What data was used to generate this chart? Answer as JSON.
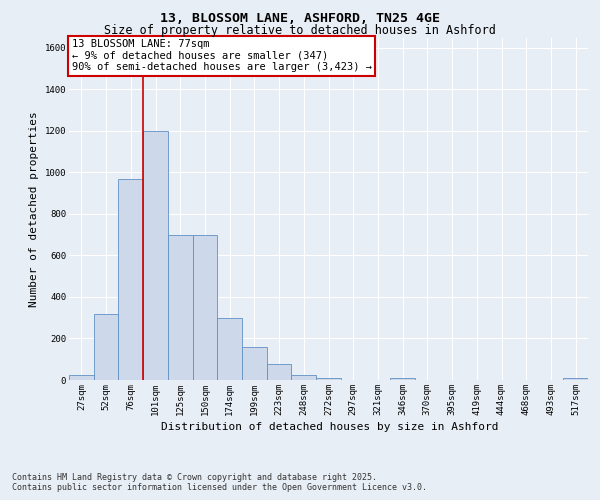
{
  "title_line1": "13, BLOSSOM LANE, ASHFORD, TN25 4GE",
  "title_line2": "Size of property relative to detached houses in Ashford",
  "xlabel": "Distribution of detached houses by size in Ashford",
  "ylabel": "Number of detached properties",
  "categories": [
    "27sqm",
    "52sqm",
    "76sqm",
    "101sqm",
    "125sqm",
    "150sqm",
    "174sqm",
    "199sqm",
    "223sqm",
    "248sqm",
    "272sqm",
    "297sqm",
    "321sqm",
    "346sqm",
    "370sqm",
    "395sqm",
    "419sqm",
    "444sqm",
    "468sqm",
    "493sqm",
    "517sqm"
  ],
  "bar_heights": [
    25,
    320,
    970,
    1200,
    700,
    700,
    300,
    160,
    75,
    25,
    10,
    0,
    0,
    10,
    0,
    0,
    0,
    0,
    0,
    0,
    10
  ],
  "bar_color": "#cdd9ea",
  "bar_edge_color": "#6090c4",
  "annotation_text": "13 BLOSSOM LANE: 77sqm\n← 9% of detached houses are smaller (347)\n90% of semi-detached houses are larger (3,423) →",
  "annotation_box_color": "#ffffff",
  "annotation_box_edge_color": "#cc0000",
  "vline_color": "#cc0000",
  "vline_x": 2.5,
  "ylim": [
    0,
    1650
  ],
  "yticks": [
    0,
    200,
    400,
    600,
    800,
    1000,
    1200,
    1400,
    1600
  ],
  "background_color": "#e8eef5",
  "plot_bg_color": "#e8eef5",
  "grid_color": "#ffffff",
  "footnote": "Contains HM Land Registry data © Crown copyright and database right 2025.\nContains public sector information licensed under the Open Government Licence v3.0.",
  "title_fontsize": 9.5,
  "subtitle_fontsize": 8.5,
  "axis_label_fontsize": 8,
  "tick_fontsize": 6.5,
  "annotation_fontsize": 7.5,
  "footnote_fontsize": 6
}
